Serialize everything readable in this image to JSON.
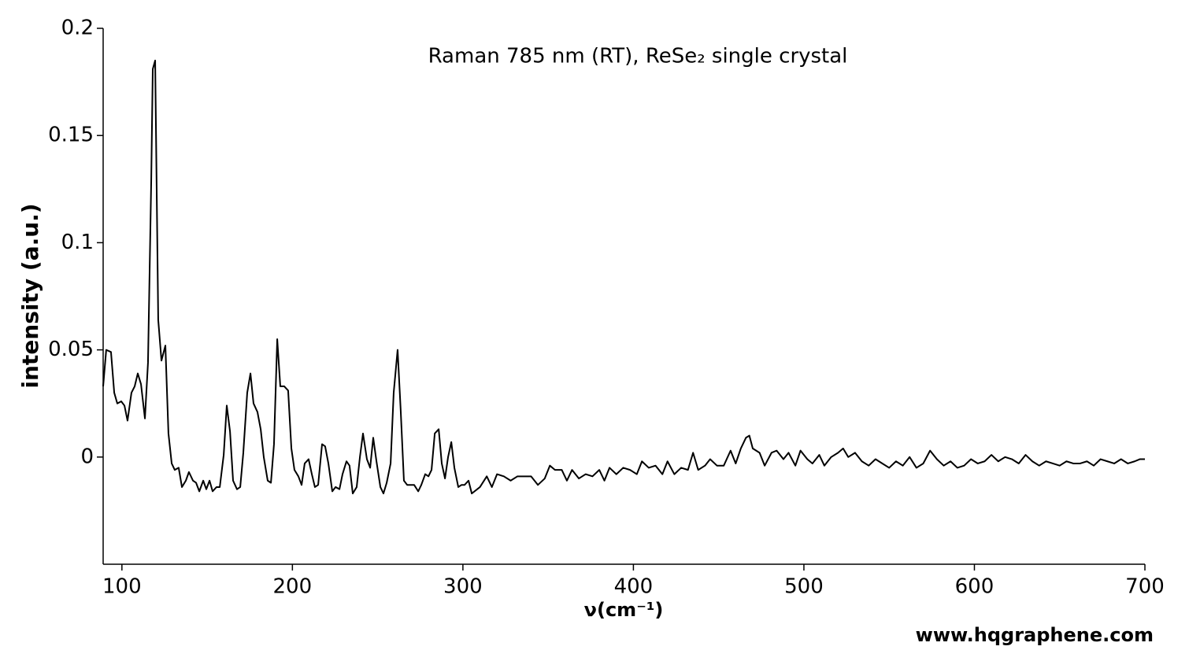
{
  "chart_data": {
    "type": "line",
    "title": "Raman 785 nm (RT), ReSe₂ single crystal",
    "x_label": "ν(cm⁻¹)",
    "y_label": "intensity (a.u.)",
    "annotation": "www.hqgraphene.com",
    "color": "#000000",
    "xlim": [
      89,
      700
    ],
    "xticks": [
      100,
      200,
      300,
      400,
      500,
      600,
      700
    ],
    "ylim": [
      -0.05,
      0.2
    ],
    "yticks": [
      0,
      0.05,
      0.1,
      0.15,
      0.2
    ],
    "x": [
      89,
      90.8,
      93.6,
      95.5,
      97.3,
      99.6,
      101.5,
      103.3,
      105.6,
      107.5,
      109.3,
      111.2,
      113.5,
      115.3,
      117.2,
      118.1,
      119.5,
      121.3,
      123.2,
      125.5,
      127.3,
      129.2,
      131,
      133.3,
      135.2,
      137.5,
      139.3,
      141.7,
      143.5,
      145.4,
      147.7,
      149.5,
      151.4,
      153.2,
      155.5,
      157.4,
      159.7,
      161.5,
      163.4,
      165.2,
      167.5,
      169.4,
      171.2,
      173.5,
      175.4,
      177.2,
      179.5,
      181.4,
      183.2,
      185.5,
      187.4,
      189.2,
      191.1,
      192.9,
      195.2,
      197.5,
      199.4,
      201.2,
      203.5,
      205.4,
      207.2,
      209.5,
      211.4,
      213.2,
      215.1,
      217.4,
      219.2,
      221.1,
      223.4,
      225.3,
      227.6,
      229.4,
      231.7,
      233.5,
      235.4,
      237.7,
      239.6,
      241.4,
      243.7,
      245.6,
      247.4,
      249.3,
      251.6,
      253.4,
      255.3,
      257.6,
      259.4,
      261.7,
      263.5,
      265.4,
      267.3,
      269.6,
      271.4,
      273.8,
      275.6,
      277.9,
      279.8,
      281.6,
      283.5,
      285.8,
      287.6,
      289.5,
      291.3,
      293.2,
      295,
      297.3,
      299.2,
      301,
      303.3,
      305.2,
      310,
      314,
      317,
      320,
      324,
      328,
      332,
      336,
      340,
      344,
      348,
      351,
      354,
      358,
      361,
      364,
      368,
      372,
      376,
      380,
      383,
      386,
      390,
      394,
      398,
      402,
      405,
      409,
      413,
      417,
      420,
      424,
      428,
      432,
      435,
      438,
      442,
      445,
      449,
      453,
      457,
      460,
      463,
      466,
      468,
      470,
      474,
      477,
      481,
      484,
      488,
      491,
      495,
      498,
      502,
      505,
      509,
      512,
      516,
      520,
      523,
      526,
      530,
      534,
      538,
      542,
      546,
      550,
      554,
      558,
      562,
      566,
      570,
      574,
      578,
      582,
      586,
      590,
      594,
      598,
      602,
      606,
      610,
      614,
      618,
      622,
      626,
      630,
      634,
      638,
      642,
      646,
      650,
      654,
      658,
      662,
      666,
      670,
      674,
      678,
      682,
      686,
      690,
      694,
      697,
      700
    ],
    "values": [
      0.033,
      0.05,
      0.049,
      0.03,
      0.025,
      0.026,
      0.024,
      0.017,
      0.03,
      0.033,
      0.039,
      0.034,
      0.018,
      0.044,
      0.129,
      0.181,
      0.185,
      0.064,
      0.045,
      0.052,
      0.011,
      -0.003,
      -0.006,
      -0.005,
      -0.014,
      -0.011,
      -0.007,
      -0.011,
      -0.012,
      -0.016,
      -0.011,
      -0.015,
      -0.011,
      -0.016,
      -0.014,
      -0.014,
      0.001,
      0.024,
      0.012,
      -0.011,
      -0.015,
      -0.014,
      0.002,
      0.03,
      0.039,
      0.025,
      0.021,
      0.013,
      0,
      -0.011,
      -0.012,
      0.006,
      0.055,
      0.033,
      0.033,
      0.031,
      0.004,
      -0.006,
      -0.009,
      -0.013,
      -0.003,
      -0.001,
      -0.008,
      -0.014,
      -0.013,
      0.006,
      0.005,
      -0.003,
      -0.016,
      -0.014,
      -0.015,
      -0.008,
      -0.002,
      -0.004,
      -0.017,
      -0.014,
      0,
      0.011,
      -0.001,
      -0.005,
      0.009,
      -0.002,
      -0.014,
      -0.017,
      -0.012,
      -0.003,
      0.03,
      0.05,
      0.022,
      -0.011,
      -0.013,
      -0.013,
      -0.013,
      -0.016,
      -0.013,
      -0.008,
      -0.009,
      -0.006,
      0.011,
      0.013,
      -0.003,
      -0.01,
      0,
      0.007,
      -0.005,
      -0.014,
      -0.013,
      -0.013,
      -0.011,
      -0.017,
      -0.014,
      -0.009,
      -0.014,
      -0.008,
      -0.009,
      -0.011,
      -0.009,
      -0.009,
      -0.009,
      -0.013,
      -0.01,
      -0.004,
      -0.006,
      -0.006,
      -0.011,
      -0.006,
      -0.01,
      -0.008,
      -0.009,
      -0.006,
      -0.011,
      -0.005,
      -0.008,
      -0.005,
      -0.006,
      -0.008,
      -0.002,
      -0.005,
      -0.004,
      -0.008,
      -0.002,
      -0.008,
      -0.005,
      -0.006,
      0.002,
      -0.006,
      -0.004,
      -0.001,
      -0.004,
      -0.004,
      0.003,
      -0.003,
      0.004,
      0.009,
      0.01,
      0.004,
      0.002,
      -0.004,
      0.002,
      0.003,
      -0.001,
      0.002,
      -0.004,
      0.003,
      -0.001,
      -0.003,
      0.001,
      -0.004,
      0,
      0.002,
      0.004,
      0,
      0.002,
      -0.002,
      -0.004,
      -0.001,
      -0.003,
      -0.005,
      -0.002,
      -0.004,
      0,
      -0.005,
      -0.003,
      0.003,
      -0.001,
      -0.004,
      -0.002,
      -0.005,
      -0.004,
      -0.001,
      -0.003,
      -0.002,
      0.001,
      -0.002,
      0,
      -0.001,
      -0.003,
      0.001,
      -0.002,
      -0.004,
      -0.002,
      -0.003,
      -0.004,
      -0.002,
      -0.003,
      -0.003,
      -0.002,
      -0.004,
      -0.001,
      -0.002,
      -0.003,
      -0.001,
      -0.003,
      -0.002,
      -0.001,
      -0.001
    ]
  }
}
